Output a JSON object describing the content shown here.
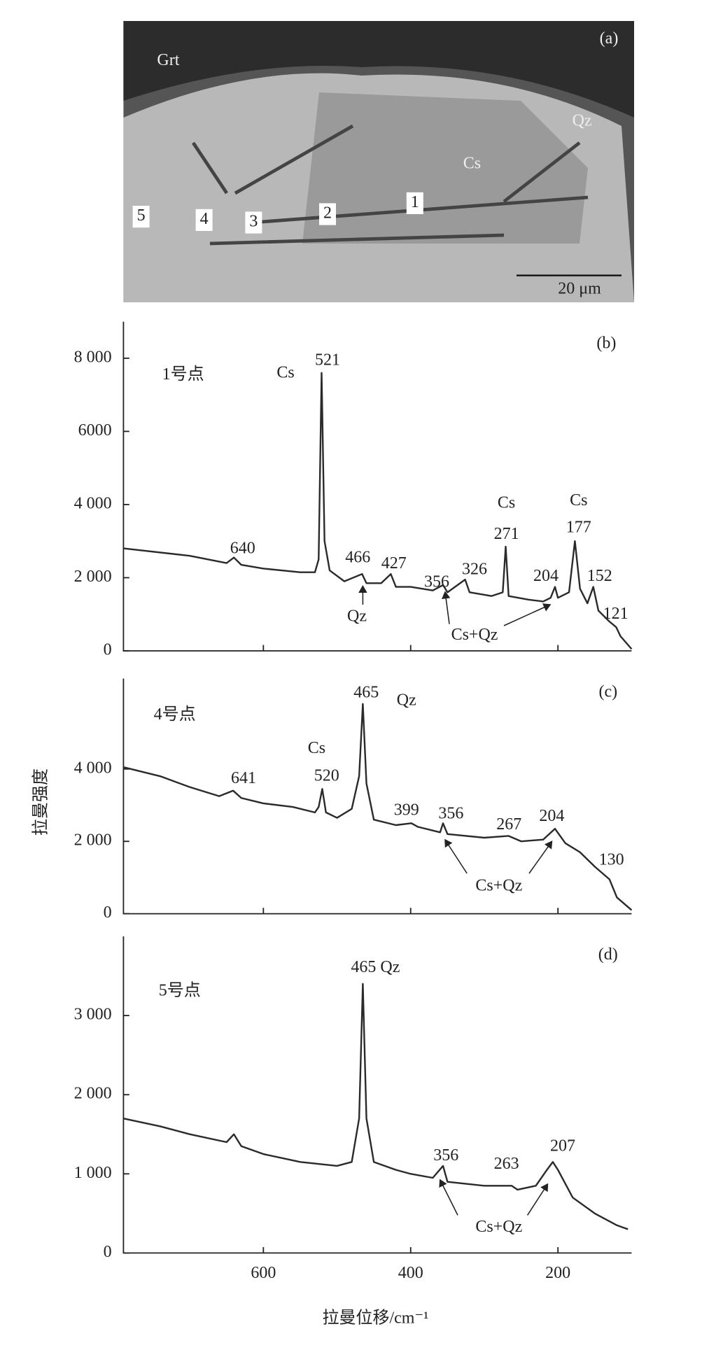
{
  "micrograph": {
    "label": "(a)",
    "texts": [
      "Grt",
      "Qz",
      "Cs"
    ],
    "points": [
      "1",
      "2",
      "3",
      "4",
      "5"
    ],
    "scale_bar": "20 μm"
  },
  "chart_data": [
    {
      "type": "line",
      "color": "#2a2a2a",
      "xlim": [
        790,
        100
      ],
      "ylim": [
        0,
        9000
      ],
      "xticks": [
        600,
        400,
        200
      ],
      "yticks": [
        0,
        {
          "value": 2000,
          "label": "2 000"
        },
        {
          "value": 4000,
          "label": "4 000"
        },
        {
          "value": 6000,
          "label": "6000"
        },
        {
          "value": 8000,
          "label": "8 000"
        }
      ],
      "x": [
        790,
        700,
        650,
        640,
        630,
        600,
        550,
        530,
        525,
        521,
        517,
        510,
        490,
        466,
        460,
        440,
        427,
        420,
        400,
        370,
        356,
        350,
        326,
        320,
        290,
        275,
        271,
        267,
        240,
        220,
        210,
        204,
        200,
        185,
        177,
        170,
        160,
        152,
        145,
        130,
        121,
        115,
        100
      ],
      "values": [
        2800,
        2600,
        2400,
        2550,
        2350,
        2250,
        2150,
        2150,
        2500,
        7600,
        3000,
        2200,
        1900,
        2100,
        1850,
        1850,
        2100,
        1750,
        1750,
        1650,
        1800,
        1600,
        1950,
        1600,
        1500,
        1600,
        2850,
        1500,
        1400,
        1350,
        1450,
        1750,
        1450,
        1600,
        3000,
        1700,
        1300,
        1750,
        1100,
        800,
        650,
        400,
        50
      ],
      "peak_labels": [
        640,
        521,
        466,
        427,
        356,
        326,
        271,
        204,
        177,
        152,
        121
      ],
      "annotations": [
        "1号点",
        "(b)",
        "Cs",
        "Qz",
        "Cs",
        "Cs",
        "Cs+Qz"
      ]
    },
    {
      "type": "line",
      "color": "#2a2a2a",
      "xlim": [
        790,
        100
      ],
      "ylim": [
        0,
        6500
      ],
      "xticks": [
        600,
        400,
        200
      ],
      "yticks": [
        0,
        {
          "value": 2000,
          "label": "2 000"
        },
        {
          "value": 4000,
          "label": "4 000"
        }
      ],
      "x": [
        790,
        740,
        700,
        660,
        641,
        630,
        600,
        560,
        530,
        525,
        520,
        515,
        500,
        480,
        470,
        465,
        460,
        450,
        420,
        399,
        390,
        360,
        356,
        350,
        300,
        267,
        250,
        220,
        204,
        190,
        170,
        150,
        130,
        120,
        100
      ],
      "values": [
        4050,
        3800,
        3500,
        3250,
        3400,
        3200,
        3050,
        2950,
        2800,
        2950,
        3450,
        2800,
        2650,
        2900,
        3800,
        5800,
        3600,
        2600,
        2450,
        2500,
        2400,
        2250,
        2500,
        2200,
        2100,
        2150,
        2000,
        2050,
        2350,
        1950,
        1700,
        1300,
        950,
        450,
        100
      ],
      "peak_labels": [
        465,
        520,
        641,
        399,
        356,
        267,
        204,
        130
      ],
      "annotations": [
        "4号点",
        "(c)",
        "Qz",
        "Cs",
        "Cs+Qz"
      ],
      "y_label": "拉曼强度"
    },
    {
      "type": "line",
      "color": "#2a2a2a",
      "xlim": [
        790,
        100
      ],
      "ylim": [
        0,
        4000
      ],
      "xticks": [
        600,
        400,
        200
      ],
      "yticks": [
        0,
        {
          "value": 1000,
          "label": "1 000"
        },
        {
          "value": 2000,
          "label": "2 000"
        },
        {
          "value": 3000,
          "label": "3 000"
        }
      ],
      "x": [
        790,
        740,
        700,
        650,
        640,
        630,
        600,
        550,
        500,
        480,
        470,
        465,
        460,
        450,
        420,
        400,
        370,
        356,
        350,
        300,
        263,
        255,
        230,
        215,
        207,
        200,
        180,
        150,
        120,
        105
      ],
      "values": [
        1700,
        1600,
        1500,
        1400,
        1500,
        1350,
        1250,
        1150,
        1100,
        1150,
        1700,
        3400,
        1700,
        1150,
        1050,
        1000,
        950,
        1100,
        900,
        850,
        850,
        800,
        850,
        1050,
        1150,
        1050,
        700,
        500,
        350,
        300
      ],
      "peak_labels": [
        356,
        263,
        207
      ],
      "annotations": [
        "5号点",
        "(d)",
        "465 Qz",
        "Cs+Qz"
      ],
      "x_label": "拉曼位移/cm⁻¹"
    }
  ]
}
